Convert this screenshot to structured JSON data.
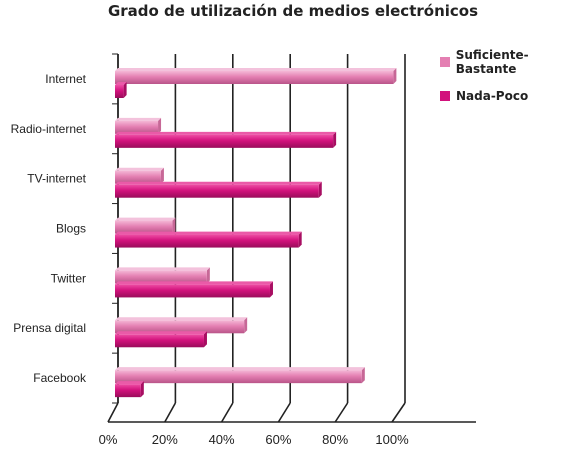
{
  "chart_data": {
    "type": "bar",
    "orientation": "horizontal",
    "title": "Grado de utilización de medios electrónicos",
    "categories": [
      "Internet",
      "Radio-internet",
      "TV-internet",
      "Blogs",
      "Twitter",
      "Prensa digital",
      "Facebook"
    ],
    "series": [
      {
        "name": "Suficiente-Bastante",
        "color": "#e47fb2",
        "values": [
          97,
          15,
          16,
          20,
          32,
          45,
          86
        ]
      },
      {
        "name": "Nada-Poco",
        "color": "#d2127c",
        "values": [
          3,
          76,
          71,
          64,
          54,
          31,
          9
        ]
      }
    ],
    "xticks": [
      "0%",
      "20%",
      "40%",
      "60%",
      "80%",
      "100%"
    ],
    "xlim": [
      0,
      100
    ],
    "grid": true,
    "legend_position": "right"
  }
}
